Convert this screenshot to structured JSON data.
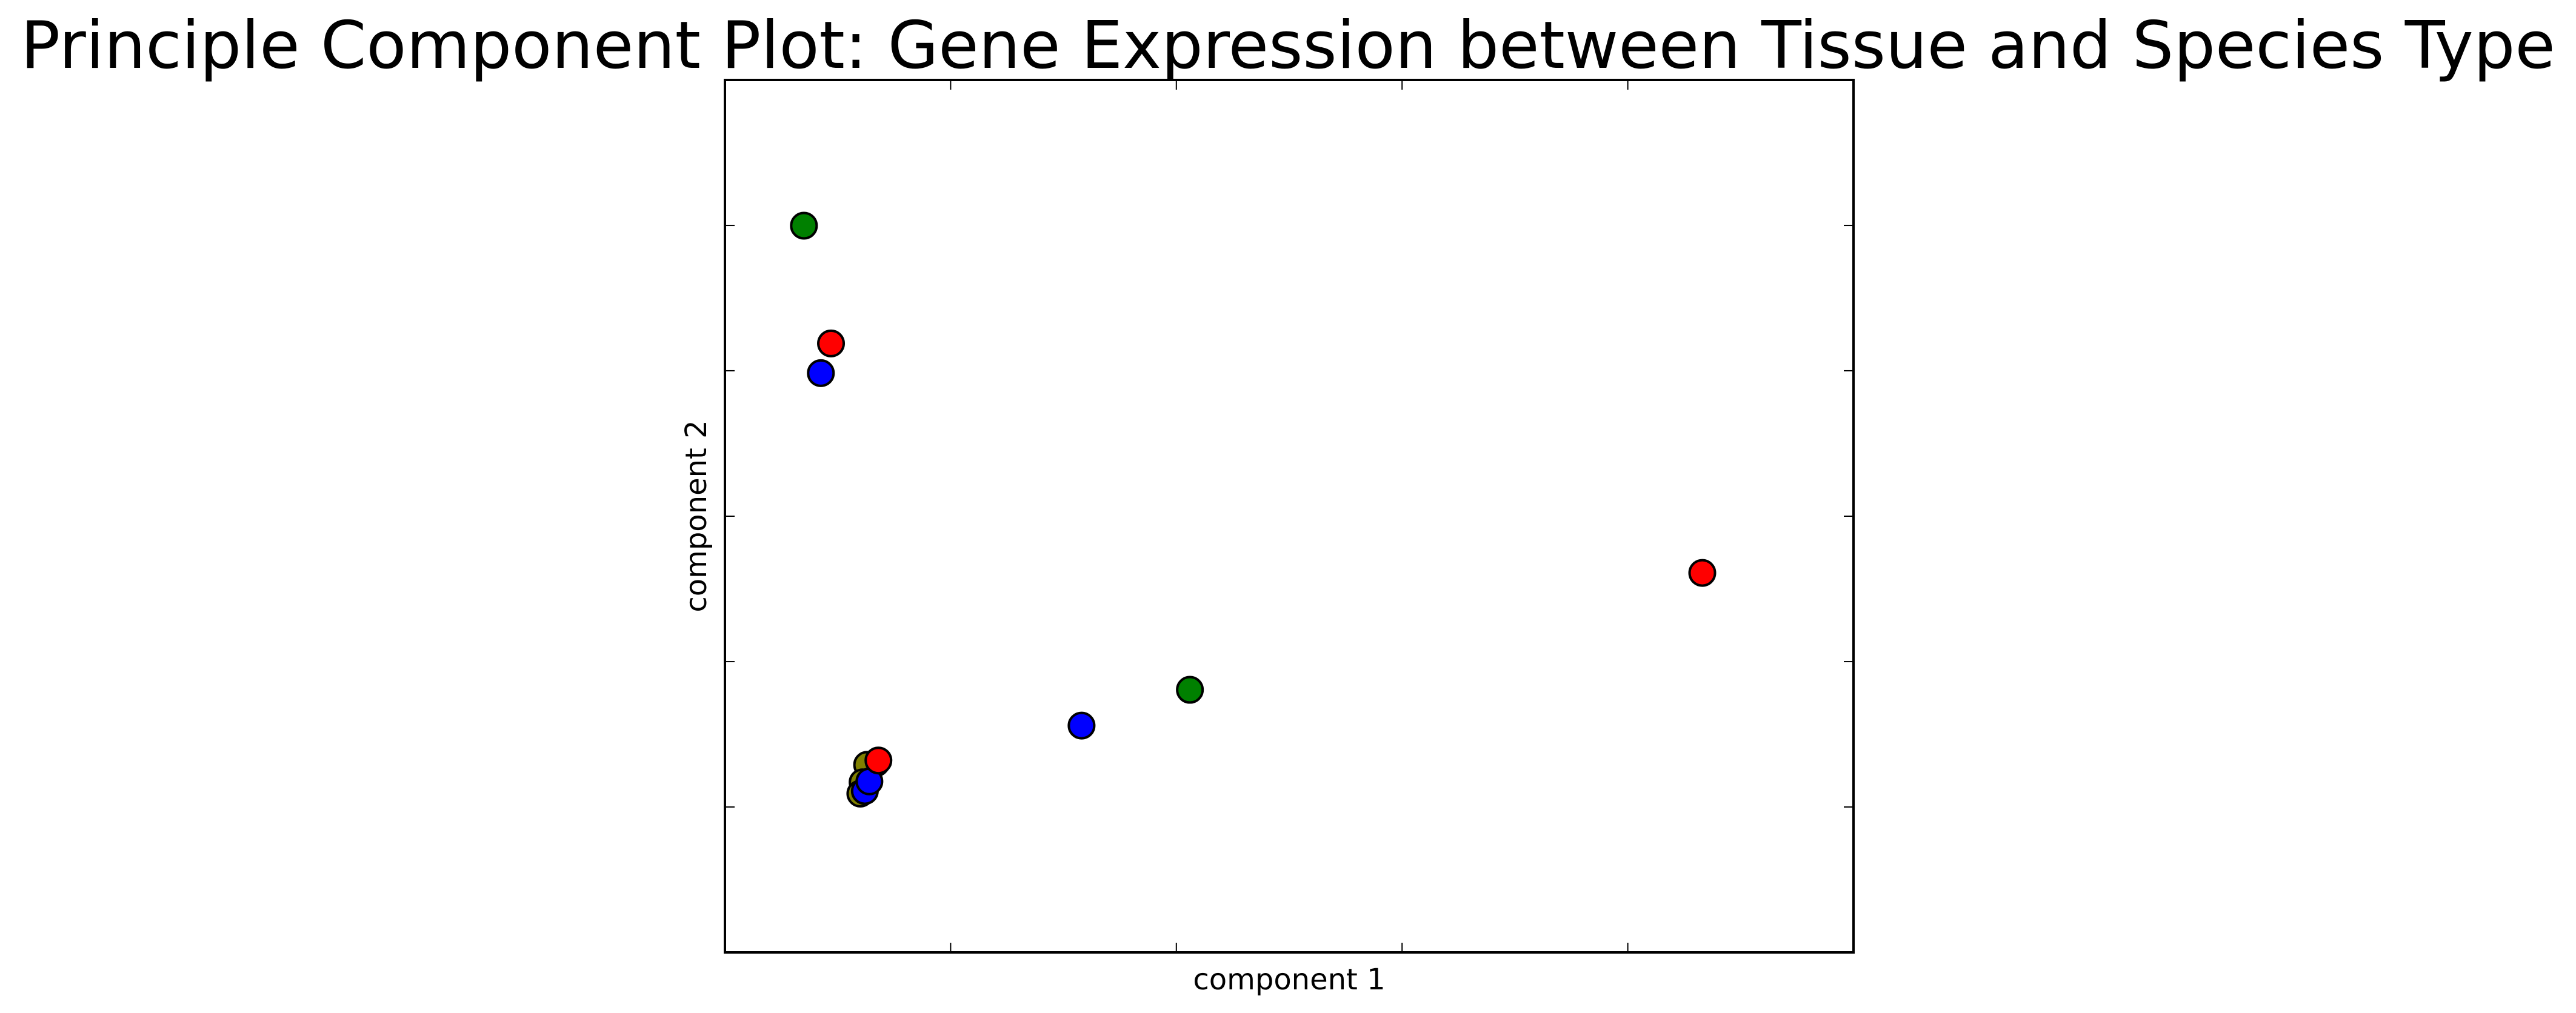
{
  "chart_data": {
    "type": "scatter",
    "title": "Principle Component Plot: Gene Expression between Tissue and Species Type",
    "xlabel": "component 1",
    "ylabel": "component 2",
    "xlim": [
      0,
      100
    ],
    "ylim": [
      0,
      100
    ],
    "x_ticks": [
      20,
      40,
      60,
      80
    ],
    "y_ticks": [
      16.67,
      33.33,
      50,
      66.67,
      83.33
    ],
    "tick_labels_visible": false,
    "grid": false,
    "legend": "none",
    "points": [
      {
        "x": 7.0,
        "y": 83.3,
        "color": "#008000"
      },
      {
        "x": 9.4,
        "y": 69.8,
        "color": "#ff0000"
      },
      {
        "x": 8.5,
        "y": 66.4,
        "color": "#0000ff"
      },
      {
        "x": 86.6,
        "y": 43.5,
        "color": "#ff0000"
      },
      {
        "x": 41.2,
        "y": 30.1,
        "color": "#008000"
      },
      {
        "x": 31.6,
        "y": 26.0,
        "color": "#0000ff"
      },
      {
        "x": 13.4,
        "y": 21.7,
        "color": "#ff0000"
      },
      {
        "x": 12.6,
        "y": 21.5,
        "color": "#808000"
      },
      {
        "x": 12.2,
        "y": 19.5,
        "color": "#808000"
      },
      {
        "x": 12.0,
        "y": 18.2,
        "color": "#808000"
      },
      {
        "x": 12.4,
        "y": 18.5,
        "color": "#0000ff"
      },
      {
        "x": 12.8,
        "y": 19.6,
        "color": "#0000ff"
      },
      {
        "x": 13.6,
        "y": 22.0,
        "color": "#ff0000"
      }
    ]
  }
}
